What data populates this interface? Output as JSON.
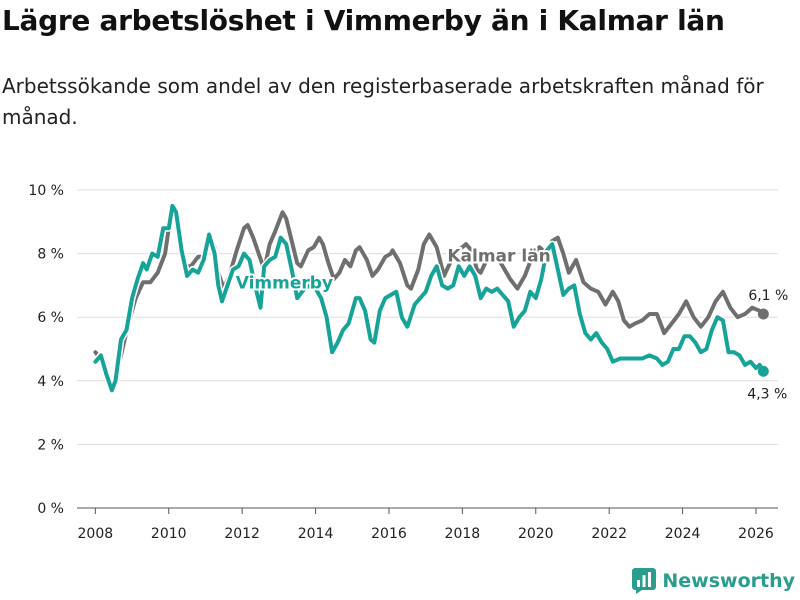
{
  "title": "Lägre arbetslöshet i Vimmerby än i Kalmar län",
  "subtitle": "Arbetssökande som andel av den registerbaserade arbetskraften månad för månad.",
  "brand": {
    "name": "Newsworthy",
    "color": "#2a9d8f",
    "icon": "newsworthy-logo-icon"
  },
  "colors": {
    "vimmerby": "#17a398",
    "kalmar": "#6f6f6f",
    "grid": "#dddddd"
  },
  "chart_data": {
    "type": "line",
    "title": "Lägre arbetslöshet i Vimmerby än i Kalmar län",
    "xlabel": "",
    "ylabel": "",
    "xlim": [
      2007.5,
      2026.6
    ],
    "ylim": [
      0,
      10
    ],
    "x_ticks": [
      2008,
      2010,
      2012,
      2014,
      2016,
      2018,
      2020,
      2022,
      2024,
      2026
    ],
    "x_tick_labels": [
      "2008",
      "2010",
      "2012",
      "2014",
      "2016",
      "2018",
      "2020",
      "2022",
      "2024",
      "2026"
    ],
    "y_ticks": [
      0,
      2,
      4,
      6,
      8,
      10
    ],
    "y_tick_labels": [
      "0 %",
      "2 %",
      "4 %",
      "6 %",
      "8 %",
      "10 %"
    ],
    "grid": true,
    "series": [
      {
        "name": "Kalmar län",
        "label": "Kalmar län",
        "end_label": "6,1 %",
        "color": "#6f6f6f",
        "points": [
          [
            2008.0,
            4.9
          ],
          [
            2008.2,
            4.6
          ],
          [
            2008.4,
            4.0
          ],
          [
            2008.5,
            3.9
          ],
          [
            2008.7,
            4.8
          ],
          [
            2008.9,
            5.8
          ],
          [
            2009.1,
            6.6
          ],
          [
            2009.3,
            7.1
          ],
          [
            2009.5,
            7.1
          ],
          [
            2009.7,
            7.4
          ],
          [
            2009.9,
            8.0
          ],
          [
            2010.05,
            9.2
          ],
          [
            2010.15,
            9.5
          ],
          [
            2010.3,
            8.6
          ],
          [
            2010.45,
            7.6
          ],
          [
            2010.6,
            7.6
          ],
          [
            2010.8,
            7.9
          ],
          [
            2010.95,
            7.9
          ],
          [
            2011.1,
            8.6
          ],
          [
            2011.25,
            8.2
          ],
          [
            2011.35,
            7.4
          ],
          [
            2011.5,
            6.9
          ],
          [
            2011.65,
            7.3
          ],
          [
            2011.85,
            8.1
          ],
          [
            2012.05,
            8.8
          ],
          [
            2012.15,
            8.9
          ],
          [
            2012.3,
            8.5
          ],
          [
            2012.45,
            8.0
          ],
          [
            2012.6,
            7.5
          ],
          [
            2012.75,
            8.3
          ],
          [
            2012.9,
            8.7
          ],
          [
            2013.1,
            9.3
          ],
          [
            2013.2,
            9.1
          ],
          [
            2013.35,
            8.4
          ],
          [
            2013.5,
            7.7
          ],
          [
            2013.6,
            7.6
          ],
          [
            2013.8,
            8.1
          ],
          [
            2013.95,
            8.2
          ],
          [
            2014.1,
            8.5
          ],
          [
            2014.2,
            8.3
          ],
          [
            2014.35,
            7.7
          ],
          [
            2014.5,
            7.2
          ],
          [
            2014.65,
            7.4
          ],
          [
            2014.8,
            7.8
          ],
          [
            2014.95,
            7.6
          ],
          [
            2015.1,
            8.1
          ],
          [
            2015.2,
            8.2
          ],
          [
            2015.4,
            7.8
          ],
          [
            2015.55,
            7.3
          ],
          [
            2015.7,
            7.5
          ],
          [
            2015.9,
            7.9
          ],
          [
            2016.05,
            8.0
          ],
          [
            2016.1,
            8.1
          ],
          [
            2016.3,
            7.7
          ],
          [
            2016.5,
            7.0
          ],
          [
            2016.6,
            6.9
          ],
          [
            2016.8,
            7.5
          ],
          [
            2016.95,
            8.3
          ],
          [
            2017.1,
            8.6
          ],
          [
            2017.3,
            8.2
          ],
          [
            2017.5,
            7.3
          ],
          [
            2017.7,
            7.8
          ],
          [
            2017.9,
            8.1
          ],
          [
            2018.1,
            8.3
          ],
          [
            2018.25,
            8.1
          ],
          [
            2018.4,
            7.5
          ],
          [
            2018.5,
            7.4
          ],
          [
            2018.7,
            7.9
          ],
          [
            2018.9,
            8.0
          ],
          [
            2019.1,
            7.6
          ],
          [
            2019.3,
            7.2
          ],
          [
            2019.5,
            6.9
          ],
          [
            2019.7,
            7.3
          ],
          [
            2019.9,
            7.9
          ],
          [
            2020.1,
            8.2
          ],
          [
            2020.3,
            8.0
          ],
          [
            2020.45,
            8.4
          ],
          [
            2020.6,
            8.5
          ],
          [
            2020.75,
            8.0
          ],
          [
            2020.9,
            7.4
          ],
          [
            2021.1,
            7.8
          ],
          [
            2021.3,
            7.1
          ],
          [
            2021.5,
            6.9
          ],
          [
            2021.7,
            6.8
          ],
          [
            2021.9,
            6.4
          ],
          [
            2022.1,
            6.8
          ],
          [
            2022.25,
            6.5
          ],
          [
            2022.4,
            5.9
          ],
          [
            2022.55,
            5.7
          ],
          [
            2022.7,
            5.8
          ],
          [
            2022.9,
            5.9
          ],
          [
            2023.1,
            6.1
          ],
          [
            2023.3,
            6.1
          ],
          [
            2023.5,
            5.5
          ],
          [
            2023.7,
            5.8
          ],
          [
            2023.9,
            6.1
          ],
          [
            2024.1,
            6.5
          ],
          [
            2024.3,
            6.0
          ],
          [
            2024.5,
            5.7
          ],
          [
            2024.7,
            6.0
          ],
          [
            2024.9,
            6.5
          ],
          [
            2025.1,
            6.8
          ],
          [
            2025.3,
            6.3
          ],
          [
            2025.5,
            6.0
          ],
          [
            2025.7,
            6.1
          ],
          [
            2025.9,
            6.3
          ],
          [
            2026.1,
            6.2
          ],
          [
            2026.2,
            6.1
          ]
        ]
      },
      {
        "name": "Vimmerby",
        "label": "Vimmerby",
        "end_label": "4,3 %",
        "color": "#17a398",
        "points": [
          [
            2008.0,
            4.6
          ],
          [
            2008.15,
            4.8
          ],
          [
            2008.3,
            4.2
          ],
          [
            2008.45,
            3.7
          ],
          [
            2008.55,
            4.0
          ],
          [
            2008.7,
            5.3
          ],
          [
            2008.85,
            5.6
          ],
          [
            2009.0,
            6.6
          ],
          [
            2009.15,
            7.2
          ],
          [
            2009.3,
            7.7
          ],
          [
            2009.4,
            7.5
          ],
          [
            2009.55,
            8.0
          ],
          [
            2009.7,
            7.9
          ],
          [
            2009.85,
            8.8
          ],
          [
            2010.0,
            8.8
          ],
          [
            2010.1,
            9.5
          ],
          [
            2010.2,
            9.3
          ],
          [
            2010.35,
            8.1
          ],
          [
            2010.5,
            7.3
          ],
          [
            2010.65,
            7.5
          ],
          [
            2010.8,
            7.4
          ],
          [
            2010.95,
            7.8
          ],
          [
            2011.1,
            8.6
          ],
          [
            2011.25,
            8.0
          ],
          [
            2011.35,
            7.0
          ],
          [
            2011.45,
            6.5
          ],
          [
            2011.6,
            7.0
          ],
          [
            2011.75,
            7.5
          ],
          [
            2011.9,
            7.6
          ],
          [
            2012.05,
            8.0
          ],
          [
            2012.2,
            7.8
          ],
          [
            2012.35,
            7.0
          ],
          [
            2012.5,
            6.3
          ],
          [
            2012.6,
            7.6
          ],
          [
            2012.75,
            7.8
          ],
          [
            2012.9,
            7.9
          ],
          [
            2013.05,
            8.5
          ],
          [
            2013.2,
            8.3
          ],
          [
            2013.35,
            7.5
          ],
          [
            2013.5,
            6.6
          ],
          [
            2013.7,
            6.9
          ],
          [
            2013.85,
            7.0
          ],
          [
            2014.0,
            6.9
          ],
          [
            2014.15,
            6.6
          ],
          [
            2014.3,
            6.0
          ],
          [
            2014.45,
            4.9
          ],
          [
            2014.6,
            5.2
          ],
          [
            2014.75,
            5.6
          ],
          [
            2014.9,
            5.8
          ],
          [
            2015.1,
            6.6
          ],
          [
            2015.2,
            6.6
          ],
          [
            2015.35,
            6.2
          ],
          [
            2015.5,
            5.3
          ],
          [
            2015.6,
            5.2
          ],
          [
            2015.75,
            6.2
          ],
          [
            2015.9,
            6.6
          ],
          [
            2016.05,
            6.7
          ],
          [
            2016.2,
            6.8
          ],
          [
            2016.35,
            6.0
          ],
          [
            2016.5,
            5.7
          ],
          [
            2016.7,
            6.4
          ],
          [
            2016.85,
            6.6
          ],
          [
            2017.0,
            6.8
          ],
          [
            2017.15,
            7.3
          ],
          [
            2017.3,
            7.6
          ],
          [
            2017.45,
            7.0
          ],
          [
            2017.6,
            6.9
          ],
          [
            2017.75,
            7.0
          ],
          [
            2017.9,
            7.6
          ],
          [
            2018.05,
            7.3
          ],
          [
            2018.2,
            7.6
          ],
          [
            2018.35,
            7.3
          ],
          [
            2018.5,
            6.6
          ],
          [
            2018.65,
            6.9
          ],
          [
            2018.8,
            6.8
          ],
          [
            2018.95,
            6.9
          ],
          [
            2019.1,
            6.7
          ],
          [
            2019.25,
            6.5
          ],
          [
            2019.4,
            5.7
          ],
          [
            2019.55,
            6.0
          ],
          [
            2019.7,
            6.2
          ],
          [
            2019.85,
            6.8
          ],
          [
            2020.0,
            6.6
          ],
          [
            2020.15,
            7.2
          ],
          [
            2020.3,
            8.1
          ],
          [
            2020.45,
            8.3
          ],
          [
            2020.6,
            7.5
          ],
          [
            2020.75,
            6.7
          ],
          [
            2020.9,
            6.9
          ],
          [
            2021.05,
            7.0
          ],
          [
            2021.2,
            6.1
          ],
          [
            2021.35,
            5.5
          ],
          [
            2021.5,
            5.3
          ],
          [
            2021.65,
            5.5
          ],
          [
            2021.8,
            5.2
          ],
          [
            2021.95,
            5.0
          ],
          [
            2022.1,
            4.6
          ],
          [
            2022.3,
            4.7
          ],
          [
            2022.5,
            4.7
          ],
          [
            2022.7,
            4.7
          ],
          [
            2022.9,
            4.7
          ],
          [
            2023.1,
            4.8
          ],
          [
            2023.3,
            4.7
          ],
          [
            2023.45,
            4.5
          ],
          [
            2023.6,
            4.6
          ],
          [
            2023.75,
            5.0
          ],
          [
            2023.9,
            5.0
          ],
          [
            2024.05,
            5.4
          ],
          [
            2024.2,
            5.4
          ],
          [
            2024.35,
            5.2
          ],
          [
            2024.5,
            4.9
          ],
          [
            2024.65,
            5.0
          ],
          [
            2024.8,
            5.6
          ],
          [
            2024.95,
            6.0
          ],
          [
            2025.1,
            5.9
          ],
          [
            2025.25,
            4.9
          ],
          [
            2025.4,
            4.9
          ],
          [
            2025.55,
            4.8
          ],
          [
            2025.7,
            4.5
          ],
          [
            2025.85,
            4.6
          ],
          [
            2026.0,
            4.4
          ],
          [
            2026.1,
            4.5
          ],
          [
            2026.2,
            4.3
          ]
        ]
      }
    ]
  }
}
